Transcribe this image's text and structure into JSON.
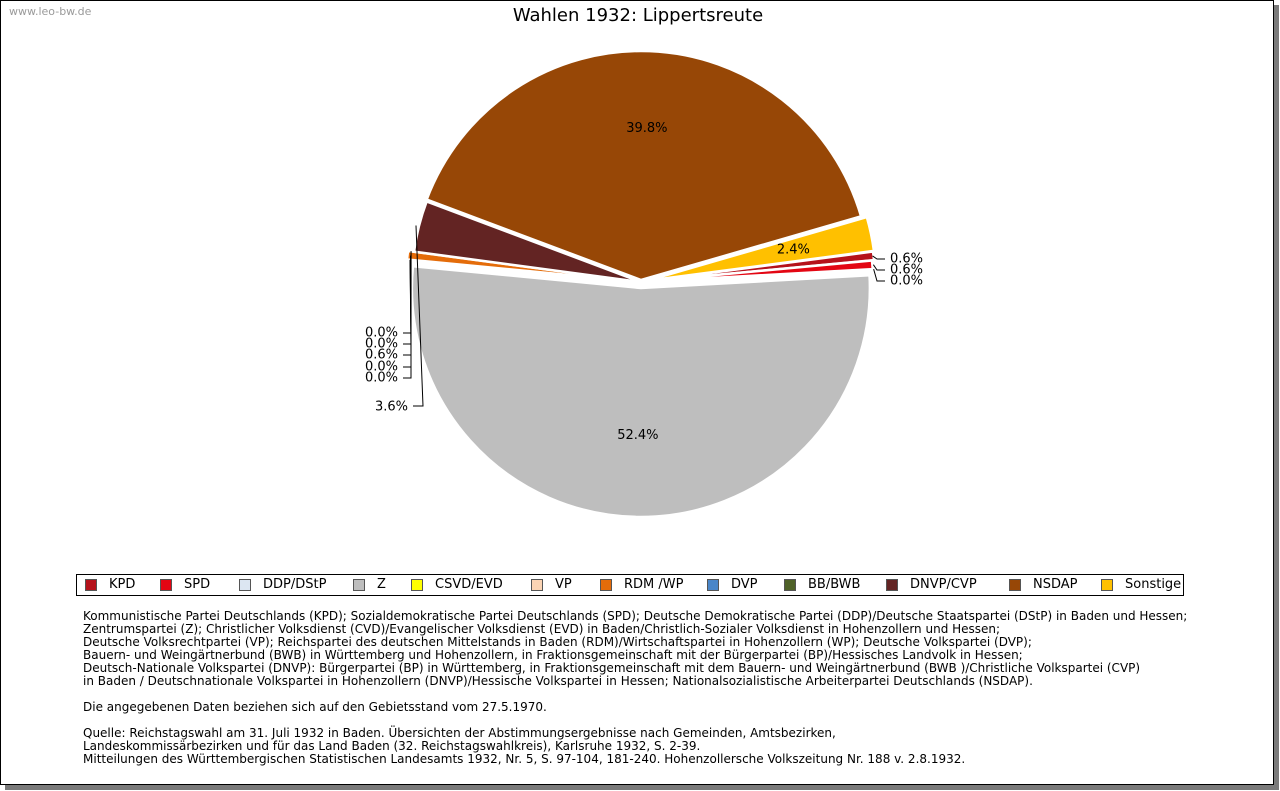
{
  "watermark": "www.leo-bw.de",
  "chart_data": {
    "type": "pie",
    "title": "Wahlen 1932: Lippertsreute",
    "slices": [
      {
        "label": "KPD",
        "value": 0.6,
        "display": "0.6%",
        "color": "#b5121b"
      },
      {
        "label": "SPD",
        "value": 0.6,
        "display": "0.6%",
        "color": "#e30613"
      },
      {
        "label": "DDP/DStP",
        "value": 0.0,
        "display": "0.0%",
        "color": "#dce6f2"
      },
      {
        "label": "Z",
        "value": 52.4,
        "display": "52.4%",
        "color": "#bebebe"
      },
      {
        "label": "CSVD/EVD",
        "value": 0.0,
        "display": "0.0%",
        "color": "#ffff00"
      },
      {
        "label": "VP",
        "value": 0.0,
        "display": "0.0%",
        "color": "#fbd4b4"
      },
      {
        "label": "RDM /WP",
        "value": 0.6,
        "display": "0.6%",
        "color": "#e46c0a"
      },
      {
        "label": "DVP",
        "value": 0.0,
        "display": "0.0%",
        "color": "#4a86c8"
      },
      {
        "label": "BB/BWB",
        "value": 0.0,
        "display": "0.0%",
        "color": "#4f6228"
      },
      {
        "label": "DNVP/CVP",
        "value": 3.6,
        "display": "3.6%",
        "color": "#632423"
      },
      {
        "label": "NSDAP",
        "value": 39.8,
        "display": "39.8%",
        "color": "#974706"
      },
      {
        "label": "Sonstige",
        "value": 2.4,
        "display": "2.4%",
        "color": "#ffc000"
      }
    ],
    "legend_placement": "bottom"
  },
  "footnote": {
    "lines": [
      "Kommunistische Partei Deutschlands (KPD); Sozialdemokratische Partei Deutschlands (SPD); Deutsche Demokratische Partei (DDP)/Deutsche Staatspartei (DStP) in Baden und Hessen;",
      "Zentrumspartei (Z); Christlicher Volksdienst (CVD)/Evangelischer Volksdienst (EVD) in Baden/Christlich-Sozialer Volksdienst in Hohenzollern und Hessen;",
      "Deutsche Volksrechtpartei (VP); Reichspartei des deutschen Mittelstands in Baden (RDM)/Wirtschaftspartei in Hohenzollern (WP); Deutsche Volkspartei (DVP);",
      "Bauern- und Weingärtnerbund (BWB) in Württemberg und Hohenzollern, in Fraktionsgemeinschaft mit der Bürgerpartei (BP)/Hessisches Landvolk in Hessen;",
      "Deutsch-Nationale Volkspartei (DNVP): Bürgerpartei (BP) in Württemberg, in Fraktionsgemeinschaft mit dem Bauern- und Weingärtnerbund (BWB )/Christliche Volkspartei (CVP)",
      "in Baden / Deutschnationale Volkspartei in Hohenzollern (DNVP)/Hessische Volkspartei in Hessen; Nationalsozialistische Arbeiterpartei Deutschlands (NSDAP).",
      "",
      "Die angegebenen Daten beziehen sich auf den Gebietsstand vom 27.5.1970.",
      "",
      "Quelle: Reichstagswahl am 31. Juli 1932 in Baden. Übersichten der Abstimmungsergebnisse nach Gemeinden, Amtsbezirken,",
      "Landeskommissärbezirken und für das Land Baden (32. Reichstagswahlkreis), Karlsruhe 1932, S. 2-39.",
      "Mitteilungen des Württembergischen Statistischen Landesamts 1932, Nr. 5, S. 97-104, 181-240. Hohenzollersche Volkszeitung Nr. 188 v. 2.8.1932."
    ]
  }
}
